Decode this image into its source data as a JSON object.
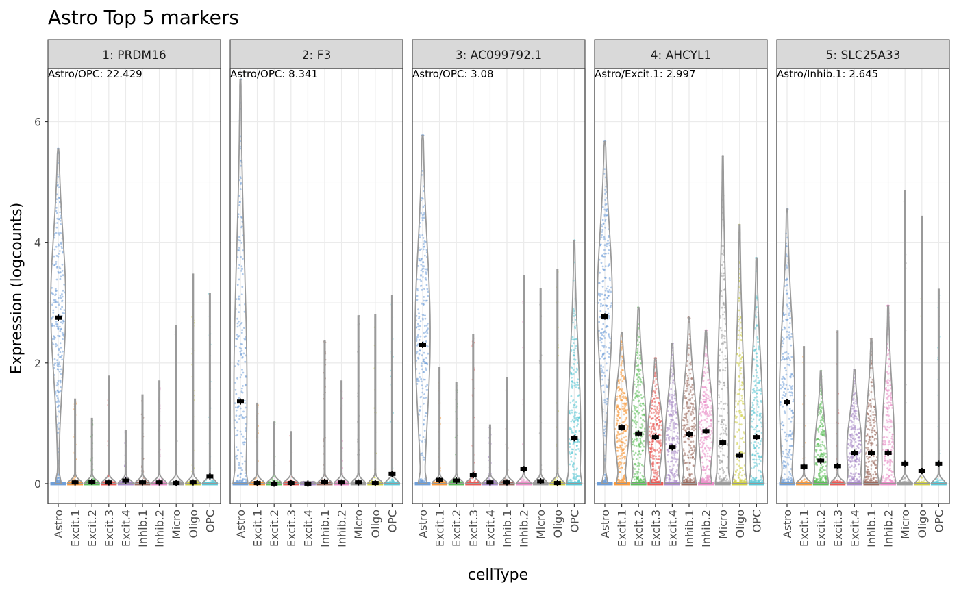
{
  "chart_data": {
    "type": "violin",
    "title": "Astro Top 5 markers",
    "xlabel": "cellType",
    "ylabel": "Expression (logcounts)",
    "ylim": [
      -0.33,
      6.88
    ],
    "yticks": [
      0,
      2,
      4,
      6
    ],
    "grid": true,
    "categories": [
      "Astro",
      "Excit.1",
      "Excit.2",
      "Excit.3",
      "Excit.4",
      "Inhib.1",
      "Inhib.2",
      "Micro",
      "Oligo",
      "OPC"
    ],
    "colors": {
      "Astro": "#6f9fd8",
      "Excit.1": "#f89a3e",
      "Excit.2": "#5cbf5a",
      "Excit.3": "#ea5a55",
      "Excit.4": "#a98ac9",
      "Inhib.1": "#9c6b5f",
      "Inhib.2": "#ea8cc7",
      "Micro": "#9e9e9e",
      "Oligo": "#cfcf45",
      "OPC": "#5bc8d6"
    },
    "facets": [
      {
        "label": "1: PRDM16",
        "annotation": "Astro/OPC: 22.429",
        "max": [
          5.55,
          1.4,
          1.08,
          1.78,
          0.88,
          1.47,
          1.7,
          2.62,
          3.47,
          3.15
        ],
        "mean": [
          2.75,
          0.02,
          0.03,
          0.02,
          0.05,
          0.02,
          0.02,
          0.01,
          0.02,
          0.12
        ]
      },
      {
        "label": "2: F3",
        "annotation": "Astro/OPC: 8.341",
        "max": [
          6.7,
          1.33,
          1.02,
          0.86,
          0.03,
          2.37,
          1.7,
          2.78,
          2.8,
          3.12
        ],
        "mean": [
          1.36,
          0.01,
          0.0,
          0.01,
          0.0,
          0.03,
          0.02,
          0.02,
          0.01,
          0.16
        ]
      },
      {
        "label": "3: AC099792.1",
        "annotation": "Astro/OPC: 3.08",
        "max": [
          5.77,
          1.92,
          1.68,
          2.47,
          0.97,
          1.75,
          3.45,
          3.23,
          3.55,
          4.03
        ],
        "mean": [
          2.3,
          0.06,
          0.05,
          0.14,
          0.02,
          0.02,
          0.24,
          0.04,
          0.01,
          0.75
        ]
      },
      {
        "label": "4: AHCYL1",
        "annotation": "Astro/Excit.1: 2.997",
        "max": [
          5.67,
          2.5,
          2.92,
          2.08,
          2.32,
          2.75,
          2.54,
          5.43,
          4.29,
          3.74
        ],
        "mean": [
          2.77,
          0.93,
          0.83,
          0.77,
          0.6,
          0.82,
          0.87,
          0.68,
          0.47,
          0.77
        ]
      },
      {
        "label": "5: SLC25A33",
        "annotation": "Astro/Inhib.1: 2.645",
        "max": [
          4.55,
          2.27,
          1.87,
          2.53,
          1.89,
          2.4,
          2.95,
          4.85,
          4.43,
          3.22
        ],
        "mean": [
          1.35,
          0.28,
          0.38,
          0.29,
          0.51,
          0.51,
          0.51,
          0.33,
          0.21,
          0.33
        ]
      }
    ]
  }
}
